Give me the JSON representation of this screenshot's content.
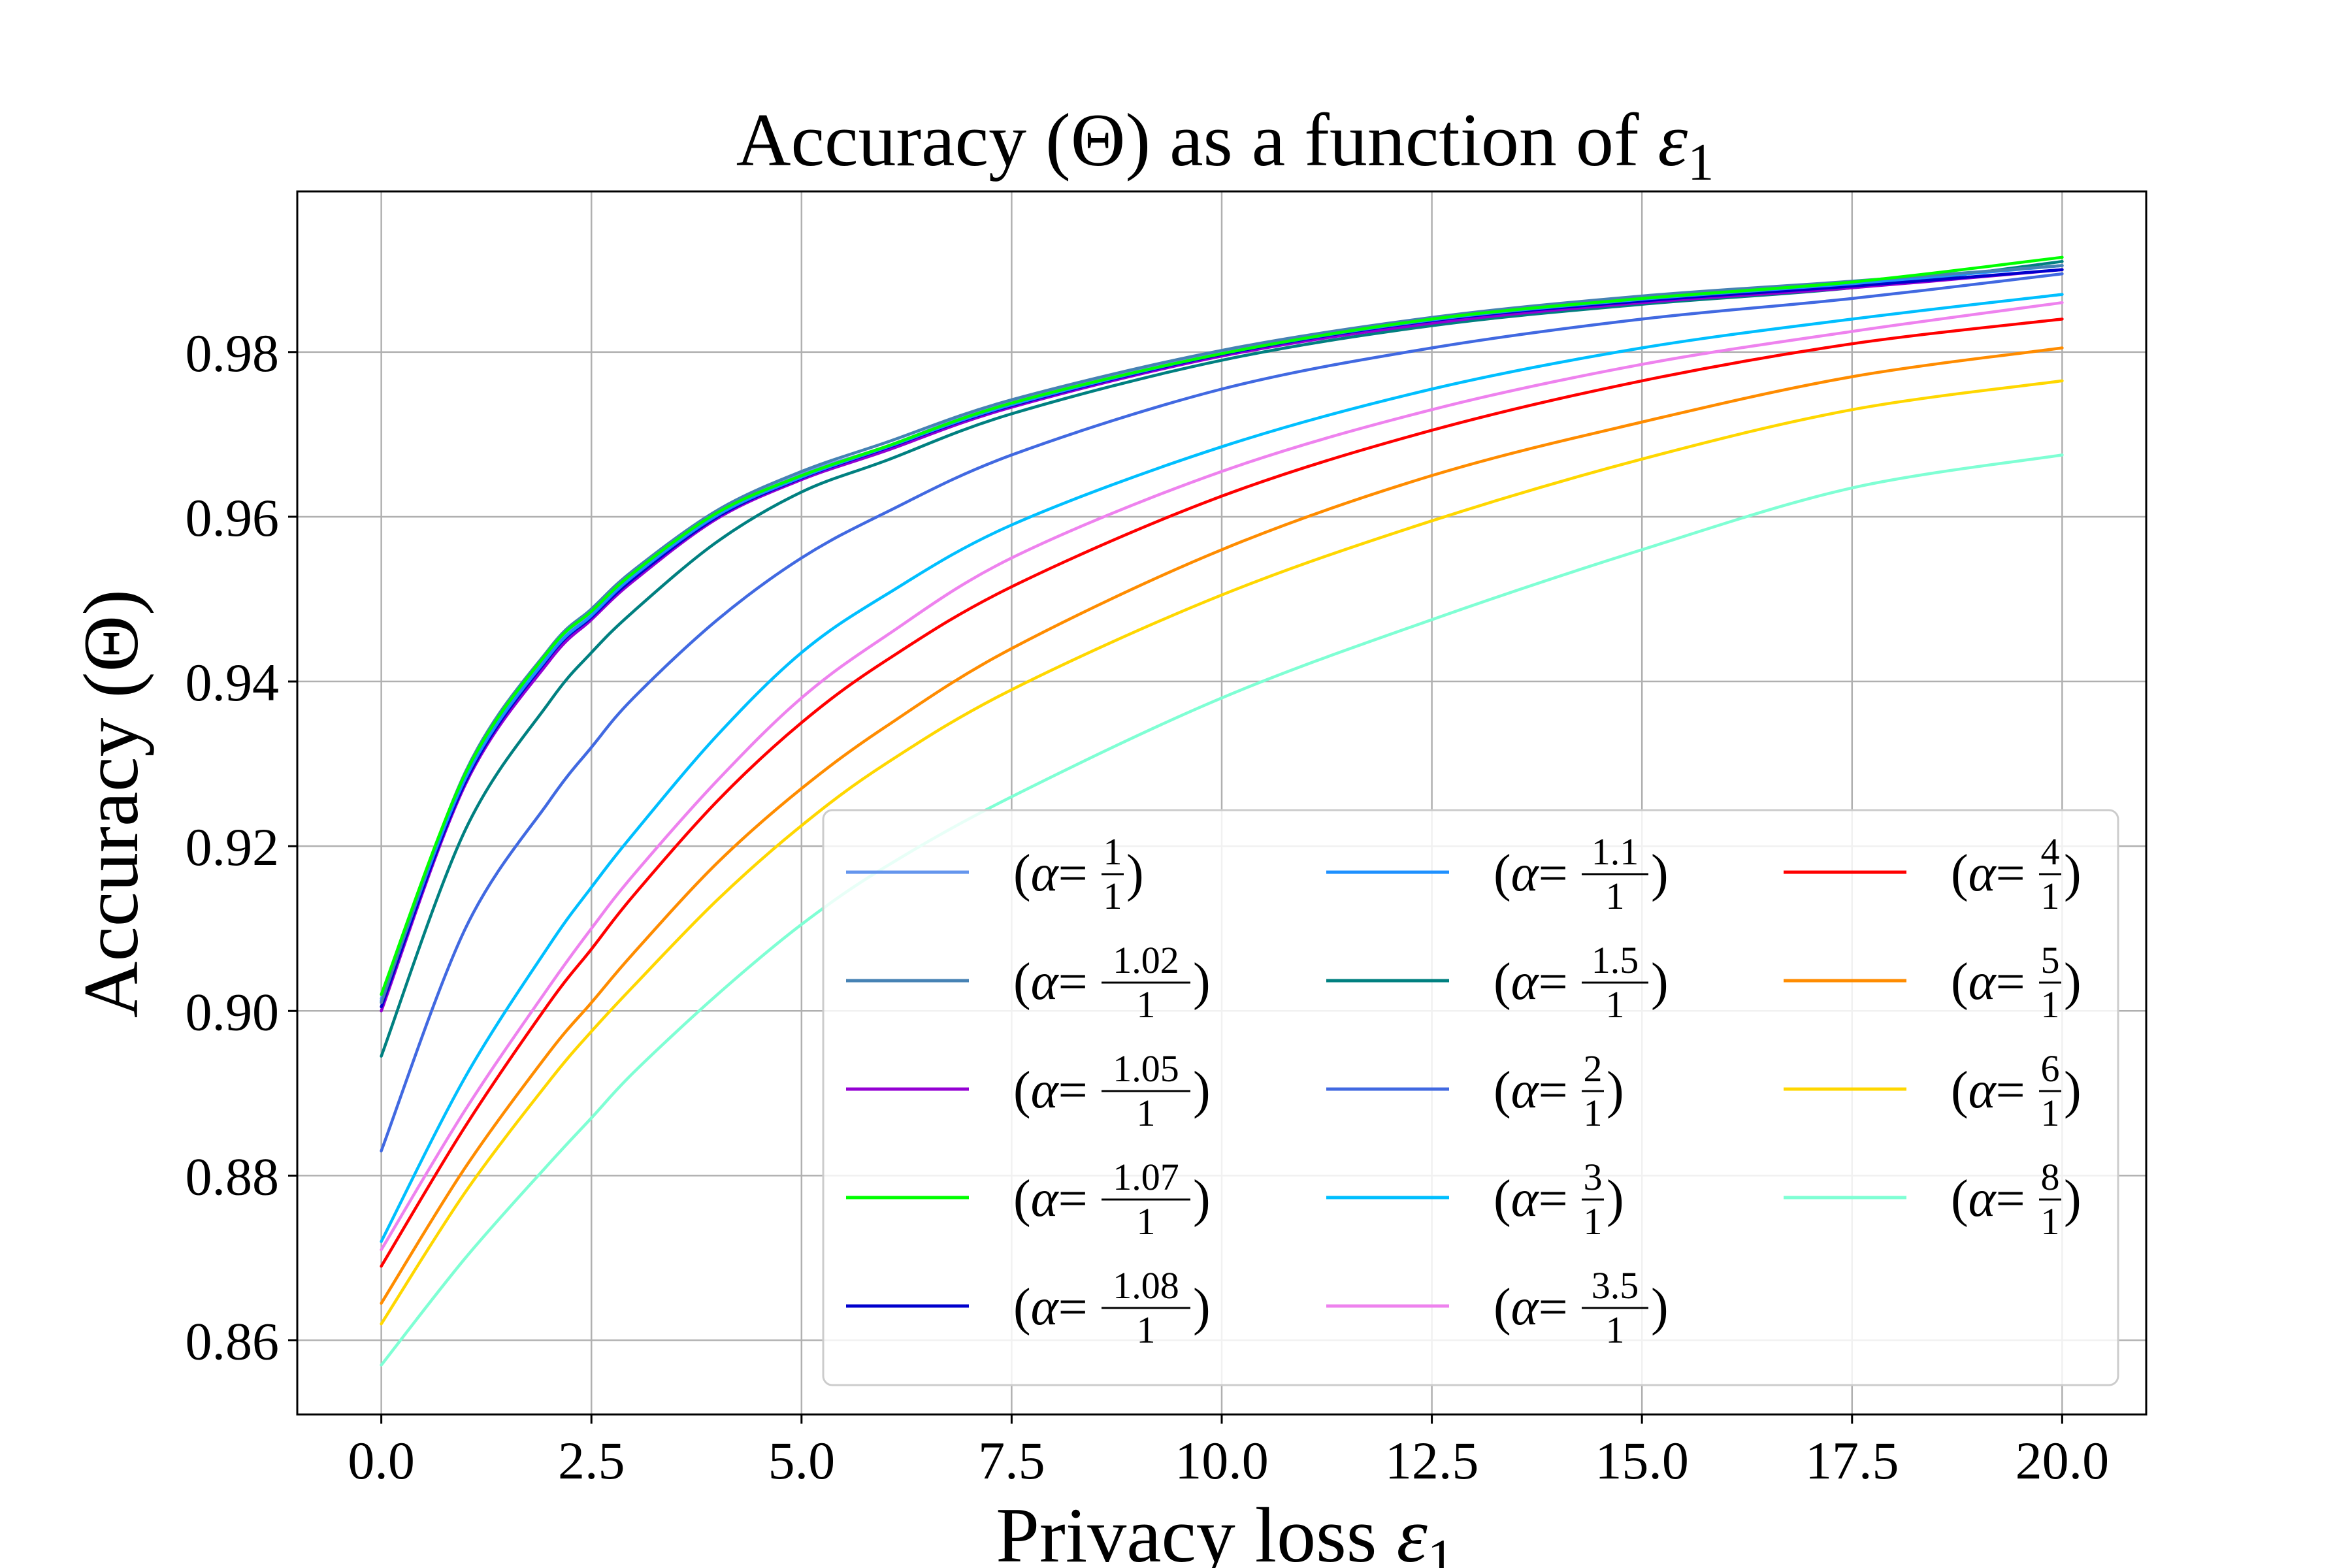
{
  "chart_data": {
    "type": "line",
    "title": {
      "main": "Accuracy (Θ) as a function of ",
      "sym": "ε",
      "sub": "1"
    },
    "xlabel": {
      "main": "Privacy loss ",
      "sym": "ε",
      "sub": "1"
    },
    "ylabel": "Accuracy (Θ)",
    "xlim": [
      -1,
      21
    ],
    "ylim": [
      0.851,
      0.9995
    ],
    "xticks": [
      0,
      2.5,
      5,
      7.5,
      10,
      12.5,
      15,
      17.5,
      20
    ],
    "xtick_labels": [
      "0.0",
      "2.5",
      "5.0",
      "7.5",
      "10.0",
      "12.5",
      "15.0",
      "17.5",
      "20.0"
    ],
    "yticks": [
      0.86,
      0.88,
      0.9,
      0.92,
      0.94,
      0.96,
      0.98
    ],
    "ytick_labels": [
      "0.86",
      "0.88",
      "0.90",
      "0.92",
      "0.94",
      "0.96",
      "0.98"
    ],
    "grid": true,
    "legend": {
      "placement": "lower-right",
      "columns": 3
    },
    "x": [
      0,
      1,
      2,
      2.5,
      3,
      4,
      5,
      6,
      7.5,
      10,
      12.5,
      15,
      17.5,
      20
    ],
    "series": [
      {
        "num": "1",
        "den": "1",
        "color": "#6495ED",
        "values": [
          0.9015,
          0.9285,
          0.9435,
          0.9482,
          0.953,
          0.9605,
          0.9652,
          0.9685,
          0.974,
          0.98,
          0.984,
          0.9865,
          0.9885,
          0.9905
        ]
      },
      {
        "num": "1.02",
        "den": "1",
        "color": "#4682B4",
        "values": [
          0.901,
          0.929,
          0.944,
          0.9488,
          0.9535,
          0.9608,
          0.9655,
          0.969,
          0.9742,
          0.9802,
          0.9842,
          0.9868,
          0.9886,
          0.9905
        ]
      },
      {
        "num": "1.05",
        "den": "1",
        "color": "#9400D3",
        "values": [
          0.9,
          0.9275,
          0.9425,
          0.9475,
          0.9522,
          0.9598,
          0.9645,
          0.968,
          0.9733,
          0.9795,
          0.9835,
          0.986,
          0.9878,
          0.99
        ]
      },
      {
        "num": "1.07",
        "den": "1",
        "color": "#00FF00",
        "values": [
          0.902,
          0.9288,
          0.9438,
          0.9485,
          0.9532,
          0.9605,
          0.965,
          0.9685,
          0.9738,
          0.9798,
          0.984,
          0.9865,
          0.9885,
          0.9915
        ]
      },
      {
        "num": "1.08",
        "den": "1",
        "color": "#0000CD",
        "values": [
          0.9005,
          0.9278,
          0.943,
          0.9478,
          0.9525,
          0.96,
          0.9647,
          0.9683,
          0.9735,
          0.9797,
          0.9838,
          0.9862,
          0.988,
          0.99
        ]
      },
      {
        "num": "1.1",
        "den": "1",
        "color": "#1E90FF",
        "values": [
          0.9012,
          0.9282,
          0.9432,
          0.948,
          0.9528,
          0.9602,
          0.9648,
          0.9684,
          0.9736,
          0.9798,
          0.9839,
          0.9864,
          0.9883,
          0.9905
        ]
      },
      {
        "num": "1.5",
        "den": "1",
        "color": "#008080",
        "values": [
          0.8945,
          0.922,
          0.9375,
          0.9435,
          0.9485,
          0.957,
          0.963,
          0.9668,
          0.9725,
          0.979,
          0.9832,
          0.9858,
          0.9878,
          0.991
        ]
      },
      {
        "num": "2",
        "den": "1",
        "color": "#4169E1",
        "values": [
          0.883,
          0.91,
          0.9255,
          0.932,
          0.938,
          0.9475,
          0.955,
          0.9605,
          0.9675,
          0.9755,
          0.9805,
          0.984,
          0.9865,
          0.9895
        ]
      },
      {
        "num": "3",
        "den": "1",
        "color": "#00BFFF",
        "values": [
          0.872,
          0.892,
          0.908,
          0.915,
          0.9215,
          0.9335,
          0.9435,
          0.9505,
          0.959,
          0.9685,
          0.9755,
          0.9805,
          0.984,
          0.987
        ]
      },
      {
        "num": "3.5",
        "den": "1",
        "color": "#EE82EE",
        "values": [
          0.871,
          0.888,
          0.903,
          0.91,
          0.9165,
          0.928,
          0.938,
          0.9455,
          0.955,
          0.9655,
          0.973,
          0.9785,
          0.9825,
          0.986
        ]
      },
      {
        "num": "4",
        "den": "1",
        "color": "#FF0000",
        "values": [
          0.869,
          0.886,
          0.901,
          0.9075,
          0.914,
          0.9255,
          0.935,
          0.9425,
          0.9515,
          0.9625,
          0.9705,
          0.9765,
          0.981,
          0.984
        ]
      },
      {
        "num": "5",
        "den": "1",
        "color": "#FF8C00",
        "values": [
          0.8645,
          0.881,
          0.895,
          0.901,
          0.907,
          0.918,
          0.927,
          0.9345,
          0.944,
          0.956,
          0.965,
          0.9715,
          0.977,
          0.9805
        ]
      },
      {
        "num": "6",
        "den": "1",
        "color": "#FFD700",
        "values": [
          0.862,
          0.878,
          0.8915,
          0.8975,
          0.903,
          0.9135,
          0.9225,
          0.93,
          0.939,
          0.9505,
          0.9595,
          0.967,
          0.973,
          0.9765
        ]
      },
      {
        "num": "8",
        "den": "1",
        "color": "#7FFFD4",
        "values": [
          0.857,
          0.87,
          0.8815,
          0.887,
          0.8925,
          0.902,
          0.9105,
          0.9175,
          0.926,
          0.938,
          0.9475,
          0.956,
          0.9635,
          0.9675
        ]
      }
    ]
  }
}
